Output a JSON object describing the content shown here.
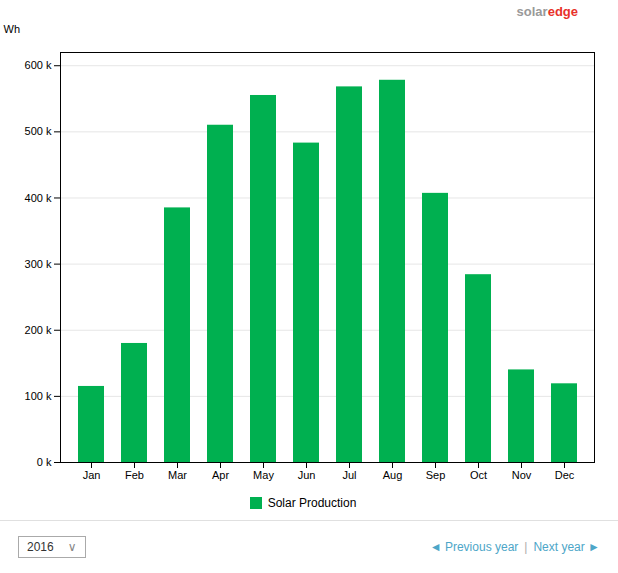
{
  "chart_data": {
    "type": "bar",
    "y_label": "Wh",
    "categories": [
      "Jan",
      "Feb",
      "Mar",
      "Apr",
      "May",
      "Jun",
      "Jul",
      "Aug",
      "Sep",
      "Oct",
      "Nov",
      "Dec"
    ],
    "series": [
      {
        "name": "Solar Production",
        "color": "#00b050",
        "values": [
          115000,
          180000,
          385000,
          510000,
          555000,
          483000,
          568000,
          578000,
          407000,
          284000,
          140000,
          119000
        ]
      }
    ],
    "ylim": [
      0,
      620000
    ],
    "yticks": [
      {
        "value": 0,
        "label": "0 k"
      },
      {
        "value": 100000,
        "label": "100 k"
      },
      {
        "value": 200000,
        "label": "200 k"
      },
      {
        "value": 300000,
        "label": "300 k"
      },
      {
        "value": 400000,
        "label": "400 k"
      },
      {
        "value": 500000,
        "label": "500 k"
      },
      {
        "value": 600000,
        "label": "600 k"
      }
    ],
    "grid": true,
    "legend": "bottom",
    "annotations": [
      {
        "text": "solar",
        "color": "#999999"
      },
      {
        "text": "edge",
        "color": "#e8312a"
      },
      {
        "text": "2016",
        "color": "#333333"
      },
      {
        "text": "∨",
        "color": "#888888"
      },
      {
        "text": "◄ Previous year",
        "color": "#4da6c8"
      },
      {
        "text": "|",
        "color": "#aaaaaa"
      },
      {
        "text": "Next year ►",
        "color": "#4da6c8"
      }
    ]
  }
}
